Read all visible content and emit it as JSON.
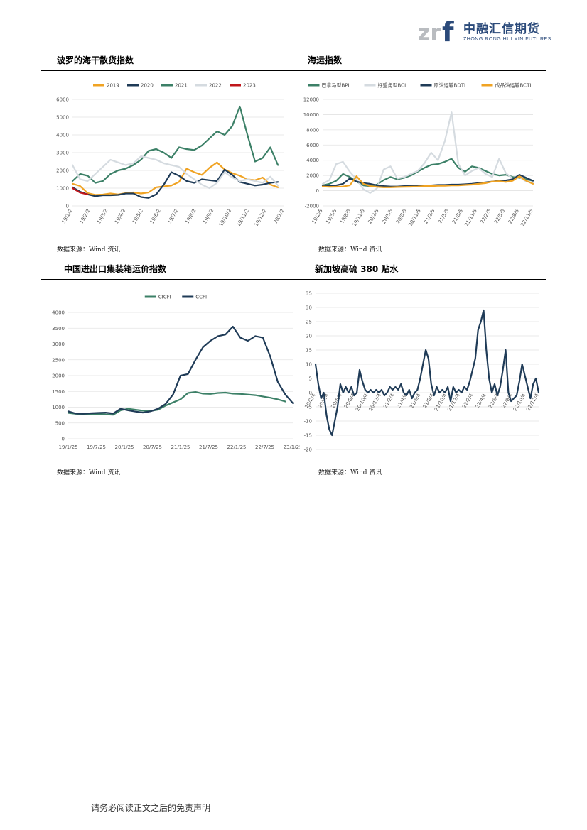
{
  "header": {
    "logo_mark": "zrf",
    "company_cn": "中融汇信期货",
    "company_en": "ZHONG RONG HUI XIN FUTURES"
  },
  "sections": {
    "s1_title": "波罗的海干散货指数",
    "s2_title": "海运指数",
    "s3_title": "中国进出口集装箱运价指数",
    "s4_title": "新加坡高硫 380 贴水",
    "source": "数据来源：Wind 资讯"
  },
  "footer": {
    "disclaimer": "请务必阅读正文之后的免责声明"
  },
  "colors": {
    "orange": "#f0a323",
    "navy": "#1f3b57",
    "teal": "#3c8067",
    "lightgray": "#d5dbe0",
    "red": "#c0161b"
  },
  "chart_data": [
    {
      "type": "line",
      "title": "",
      "xlabel": "",
      "ylabel": "",
      "ylim": [
        0,
        6000
      ],
      "yticks": [
        0,
        1000,
        2000,
        3000,
        4000,
        5000,
        6000
      ],
      "x_ticklabels": [
        "19/1/2",
        "19/2/2",
        "19/3/2",
        "19/4/2",
        "19/5/2",
        "19/6/2",
        "19/7/2",
        "19/8/2",
        "19/9/2",
        "19/10/2",
        "19/11/2",
        "19/12/2",
        "20/1/2"
      ],
      "grid": true,
      "legend": "top",
      "series": [
        {
          "name": "2019",
          "color": "#f0a323",
          "values": [
            1250,
            1120,
            720,
            620,
            640,
            700,
            650,
            720,
            760,
            700,
            760,
            1050,
            1100,
            1150,
            1350,
            2100,
            1900,
            1750,
            2150,
            2450,
            2050,
            1850,
            1700,
            1500,
            1450,
            1600,
            1200,
            1050
          ]
        },
        {
          "name": "2020",
          "color": "#1f3b57",
          "values": [
            1050,
            800,
            650,
            550,
            600,
            600,
            620,
            700,
            700,
            500,
            450,
            650,
            1200,
            1900,
            1700,
            1400,
            1300,
            1500,
            1450,
            1400,
            2050,
            1750,
            1350,
            1250,
            1150,
            1200,
            1300,
            1350
          ]
        },
        {
          "name": "2021",
          "color": "#3c8067",
          "values": [
            1400,
            1800,
            1700,
            1300,
            1400,
            1800,
            2000,
            2100,
            2300,
            2600,
            3100,
            3200,
            3000,
            2700,
            3300,
            3200,
            3150,
            3400,
            3800,
            4200,
            4000,
            4500,
            5600,
            4000,
            2500,
            2700,
            3300,
            2300
          ]
        },
        {
          "name": "2022",
          "color": "#d5dbe0",
          "values": [
            2300,
            1500,
            1400,
            1800,
            2200,
            2600,
            2450,
            2300,
            2400,
            2800,
            2700,
            2600,
            2400,
            2300,
            2200,
            1800,
            1500,
            1200,
            1000,
            1300,
            1900,
            1600,
            1400,
            1500,
            1400,
            1300,
            1650,
            1150
          ]
        },
        {
          "name": "2023",
          "color": "#c0161b",
          "values": [
            1000,
            750,
            650
          ]
        }
      ]
    },
    {
      "type": "line",
      "title": "",
      "ylim": [
        -2000,
        12000
      ],
      "yticks": [
        -2000,
        0,
        2000,
        4000,
        6000,
        8000,
        10000,
        12000
      ],
      "x_ticklabels": [
        "19/2/5",
        "19/5/5",
        "19/8/5",
        "19/11/5",
        "20/2/5",
        "20/5/5",
        "20/8/5",
        "20/11/5",
        "21/2/5",
        "21/5/5",
        "21/8/5",
        "21/11/5",
        "22/2/5",
        "22/5/5",
        "22/8/5",
        "22/11/5"
      ],
      "grid": true,
      "legend": "top",
      "series": [
        {
          "name": "巴拿马型BPI",
          "color": "#3c8067",
          "values": [
            700,
            900,
            1300,
            2200,
            1800,
            1200,
            700,
            600,
            800,
            1400,
            1800,
            1500,
            1700,
            2000,
            2500,
            3000,
            3400,
            3500,
            3800,
            4200,
            3000,
            2500,
            3200,
            3000,
            2600,
            2200,
            2000,
            2100,
            1800,
            1700,
            1500,
            1300
          ]
        },
        {
          "name": "好望角型BCI",
          "color": "#d5dbe0",
          "values": [
            900,
            1400,
            3500,
            3800,
            2500,
            1500,
            200,
            -300,
            300,
            2800,
            3200,
            1600,
            1800,
            2200,
            2600,
            3600,
            5000,
            4000,
            6500,
            10300,
            3500,
            2000,
            2600,
            3000,
            2200,
            1800,
            4200,
            2300,
            1600,
            1800,
            1200,
            1100
          ]
        },
        {
          "name": "原油运输BDTI",
          "color": "#1f3b57",
          "values": [
            700,
            650,
            700,
            900,
            1600,
            1200,
            1000,
            900,
            700,
            600,
            550,
            550,
            600,
            650,
            650,
            700,
            700,
            750,
            750,
            800,
            800,
            850,
            900,
            1000,
            1100,
            1200,
            1300,
            1350,
            1500,
            2100,
            1700,
            1300
          ]
        },
        {
          "name": "成品油运输BCTI",
          "color": "#f0a323",
          "values": [
            550,
            500,
            520,
            550,
            700,
            1900,
            900,
            600,
            500,
            450,
            450,
            480,
            500,
            520,
            550,
            600,
            600,
            650,
            650,
            700,
            700,
            750,
            800,
            900,
            1000,
            1200,
            1250,
            1150,
            1300,
            1900,
            1300,
            900
          ]
        }
      ]
    },
    {
      "type": "line",
      "title": "",
      "ylim": [
        0,
        4000
      ],
      "yticks": [
        0,
        500,
        1000,
        1500,
        2000,
        2500,
        3000,
        3500,
        4000
      ],
      "x_ticklabels": [
        "19/1/25",
        "19/7/25",
        "20/1/25",
        "20/7/25",
        "21/1/25",
        "21/7/25",
        "22/1/25",
        "22/7/25",
        "23/1/25"
      ],
      "grid": true,
      "legend": "top",
      "series": [
        {
          "name": "CICFI",
          "color": "#3c8067",
          "values": [
            820,
            790,
            780,
            780,
            790,
            770,
            760,
            900,
            950,
            920,
            890,
            880,
            920,
            1050,
            1150,
            1250,
            1450,
            1480,
            1430,
            1420,
            1450,
            1460,
            1430,
            1420,
            1400,
            1380,
            1340,
            1300,
            1250,
            1180
          ]
        },
        {
          "name": "CCFI",
          "color": "#1f3b57",
          "values": [
            870,
            800,
            790,
            810,
            820,
            830,
            800,
            950,
            900,
            860,
            830,
            870,
            950,
            1100,
            1400,
            2000,
            2050,
            2500,
            2900,
            3100,
            3250,
            3300,
            3550,
            3200,
            3100,
            3250,
            3200,
            2600,
            1800,
            1400,
            1130
          ]
        }
      ]
    },
    {
      "type": "line",
      "title": "",
      "ylim": [
        -20,
        35
      ],
      "yticks": [
        -20,
        -15,
        -10,
        -5,
        0,
        5,
        10,
        15,
        20,
        25,
        30,
        35
      ],
      "x_ticklabels": [
        "20/2/4",
        "20/4/4",
        "20/6/4",
        "20/8/4",
        "20/10/4",
        "20/12/4",
        "21/2/4",
        "21/4/4",
        "21/6/4",
        "21/8/4",
        "21/10/4",
        "21/12/4",
        "22/2/4",
        "22/4/4",
        "22/6/4",
        "22/8/4",
        "22/10/4",
        "22/12/4"
      ],
      "grid": true,
      "legend": "none",
      "series": [
        {
          "name": "",
          "color": "#1f3b57",
          "values": [
            10,
            3,
            -2,
            0,
            -8,
            -13,
            -15,
            -10,
            -5,
            3,
            0,
            2,
            0,
            2,
            -1,
            0,
            8,
            4,
            1,
            0,
            1,
            0,
            1,
            0,
            1,
            -1,
            0,
            2,
            1,
            2,
            1,
            3,
            0,
            -1,
            1,
            -2,
            0,
            1,
            5,
            10,
            15,
            12,
            3,
            -1,
            2,
            0,
            1,
            0,
            2,
            -3,
            2,
            0,
            1,
            0,
            2,
            1,
            4,
            8,
            12,
            22,
            25,
            29,
            15,
            5,
            0,
            3,
            -1,
            2,
            8,
            15,
            0,
            -3,
            -2,
            -1,
            4,
            10,
            6,
            2,
            -2,
            3,
            5,
            0
          ]
        }
      ]
    }
  ]
}
